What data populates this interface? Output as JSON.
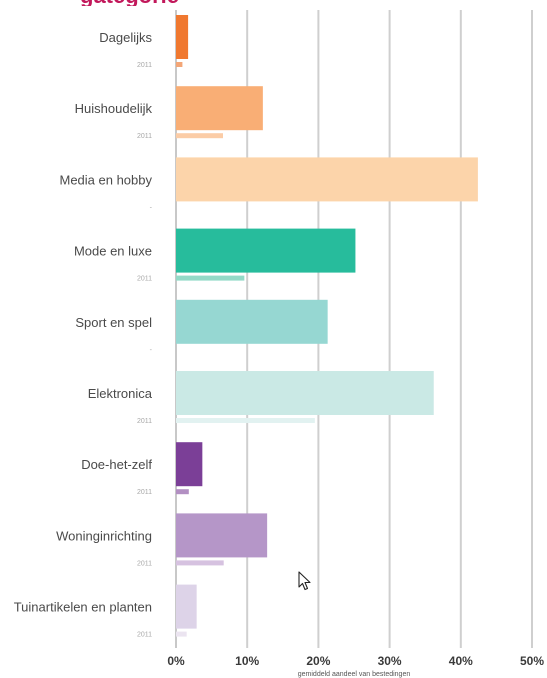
{
  "chart_data": {
    "type": "bar",
    "orientation": "horizontal",
    "title": "",
    "xlabel": "gemiddeld aandeel van bestedingen",
    "ylabel": "",
    "xlim": [
      0,
      50
    ],
    "x_ticks": [
      "0%",
      "10%",
      "20%",
      "30%",
      "40%",
      "50%"
    ],
    "x_tick_values": [
      0,
      10,
      20,
      30,
      40,
      50
    ],
    "grid": "vertical",
    "categories": [
      "Dagelijks",
      "Huishoudelijk",
      "Media en hobby",
      "Mode en luxe",
      "Sport en spel",
      "Elektronica",
      "Doe-het-zelf",
      "Woninginrichting",
      "Tuinartikelen en planten"
    ],
    "series": [
      {
        "values": [
          1.7,
          12.2,
          42.4,
          25.2,
          21.3,
          36.2,
          3.7,
          12.8,
          2.9
        ]
      },
      {
        "name": "2011",
        "values": [
          0.9,
          6.6,
          0,
          9.6,
          0,
          19.5,
          1.8,
          6.7,
          1.5
        ],
        "labels": [
          "2011",
          "2011",
          "-",
          "2011",
          "-",
          "2011",
          "2011",
          "2011",
          "2011"
        ]
      }
    ],
    "colors": [
      "#f0782f",
      "#f9ae75",
      "#fcd4aa",
      "#27bc9c",
      "#96d7d2",
      "#cae9e5",
      "#7b3f97",
      "#b596c8",
      "#ddd3e8"
    ],
    "colors_2011": [
      "#f3a677",
      "#fbcca6",
      "#fde3c8",
      "#93dac7",
      "#c4e8e5",
      "#e2f2f1",
      "#b28fc2",
      "#d6c2e0",
      "#ebe4f0"
    ]
  },
  "title_fragment": "gategorie",
  "cursor_icon": "mouse-pointer-icon"
}
